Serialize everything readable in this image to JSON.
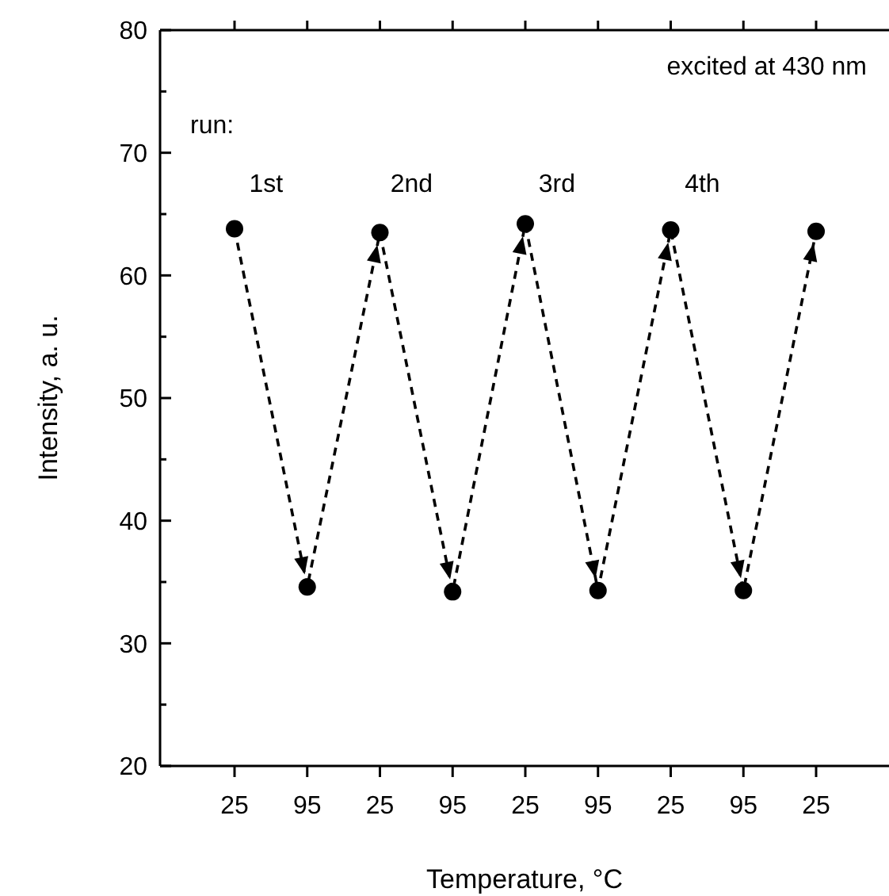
{
  "chart_data": {
    "type": "line",
    "xlabel": "Temperature, °C",
    "ylabel": "Intensity, a. u.",
    "categories": [
      "25",
      "95",
      "25",
      "95",
      "25",
      "95",
      "25",
      "95",
      "25"
    ],
    "series": [
      {
        "color": "#000000",
        "values": [
          63.8,
          34.6,
          63.5,
          34.2,
          64.2,
          34.3,
          63.7,
          34.3,
          63.6
        ]
      }
    ],
    "ylim": [
      20,
      80
    ],
    "yticks": [
      20,
      {
        "value": 25,
        "label": null
      },
      30,
      {
        "value": 35,
        "label": null
      },
      40,
      {
        "value": 45,
        "label": null
      },
      50,
      {
        "value": 55,
        "label": null
      },
      60,
      {
        "value": 65,
        "label": null
      },
      70,
      {
        "value": 75,
        "label": null
      },
      80
    ],
    "marker": "circle",
    "line_style": "dashed",
    "grid": false,
    "annotations": [
      "excited at 430 nm",
      "run:",
      "1st",
      "2nd",
      "3rd",
      "4th"
    ]
  }
}
